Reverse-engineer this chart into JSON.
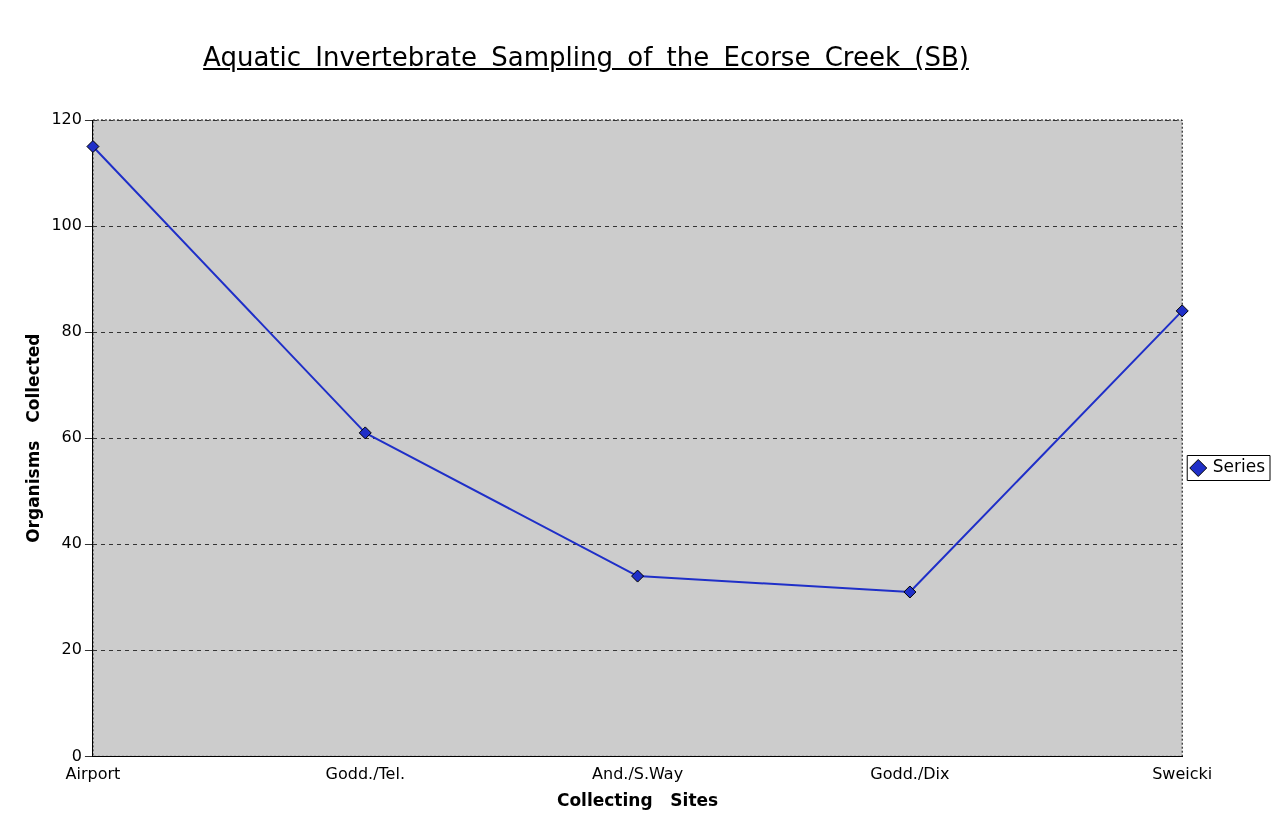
{
  "chart_data": {
    "type": "line",
    "title": "Aquatic Invertebrate Sampling of the Ecorse Creek (SB)",
    "xlabel": "Collecting   Sites",
    "ylabel": "Organisms   Collected",
    "categories": [
      "Airport",
      "Godd./Tel.",
      "And./S.Way",
      "Godd./Dix",
      "Sweicki"
    ],
    "series": [
      {
        "name": "Series",
        "color": "#1f2fc8",
        "values": [
          115,
          61,
          34,
          31,
          84
        ]
      }
    ],
    "ylim": [
      0,
      120
    ],
    "yticks": [
      0,
      20,
      40,
      60,
      80,
      100,
      120
    ],
    "grid": "y",
    "legend": "right",
    "marker": "diamond",
    "line_style": "solid"
  }
}
